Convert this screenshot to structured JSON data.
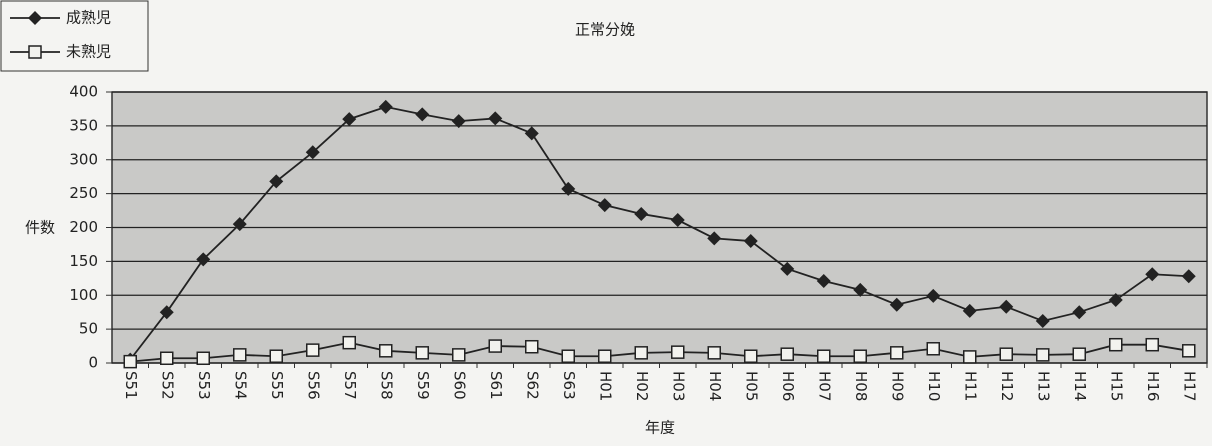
{
  "chart_data": {
    "type": "line",
    "title": "正常分娩",
    "x_label": "年度",
    "y_label": "件数",
    "categories": [
      "S51",
      "S52",
      "S53",
      "S54",
      "S55",
      "S56",
      "S57",
      "S58",
      "S59",
      "S60",
      "S61",
      "S62",
      "S63",
      "H01",
      "H02",
      "H03",
      "H04",
      "H05",
      "H06",
      "H07",
      "H08",
      "H09",
      "H10",
      "H11",
      "H12",
      "H13",
      "H14",
      "H15",
      "H16",
      "H17"
    ],
    "series": [
      {
        "name": "成熟児",
        "color": "#222222",
        "marker": "diamond",
        "values": [
          5,
          75,
          153,
          205,
          268,
          311,
          360,
          378,
          367,
          357,
          361,
          339,
          257,
          233,
          220,
          211,
          184,
          180,
          139,
          121,
          108,
          86,
          99,
          77,
          83,
          62,
          75,
          93,
          131,
          128
        ]
      },
      {
        "name": "未熟児",
        "color": "#222222",
        "marker": "square",
        "values": [
          2,
          7,
          7,
          12,
          10,
          19,
          30,
          18,
          15,
          12,
          25,
          24,
          10,
          10,
          15,
          16,
          15,
          10,
          13,
          10,
          10,
          15,
          21,
          9,
          13,
          12,
          13,
          27,
          27,
          18
        ]
      }
    ],
    "ylim": [
      0,
      400
    ],
    "yticks": [
      0,
      50,
      100,
      150,
      200,
      250,
      300,
      350,
      400
    ],
    "grid": true,
    "legend": "top-left"
  }
}
